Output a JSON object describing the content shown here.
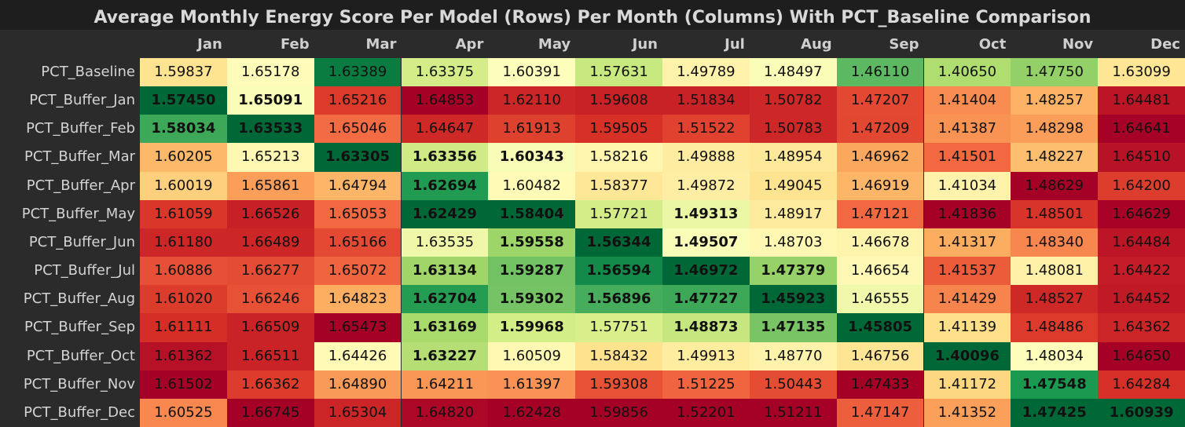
{
  "chart_data": {
    "type": "heatmap",
    "title": "Average Monthly Energy Score Per Model (Rows) Per Month (Columns) With PCT_Baseline Comparison",
    "columns": [
      "Jan",
      "Feb",
      "Mar",
      "Apr",
      "May",
      "Jun",
      "Jul",
      "Aug",
      "Sep",
      "Oct",
      "Nov",
      "Dec"
    ],
    "rows": [
      "PCT_Baseline",
      "PCT_Buffer_Jan",
      "PCT_Buffer_Feb",
      "PCT_Buffer_Mar",
      "PCT_Buffer_Apr",
      "PCT_Buffer_May",
      "PCT_Buffer_Jun",
      "PCT_Buffer_Jul",
      "PCT_Buffer_Aug",
      "PCT_Buffer_Sep",
      "PCT_Buffer_Oct",
      "PCT_Buffer_Nov",
      "PCT_Buffer_Dec"
    ],
    "values": [
      [
        1.59837,
        1.65178,
        1.63389,
        1.63375,
        1.60391,
        1.57631,
        1.49789,
        1.48497,
        1.4611,
        1.4065,
        1.4775,
        1.63099
      ],
      [
        1.5745,
        1.65091,
        1.65216,
        1.64853,
        1.6211,
        1.59608,
        1.51834,
        1.50782,
        1.47207,
        1.41404,
        1.48257,
        1.64481
      ],
      [
        1.58034,
        1.63533,
        1.65046,
        1.64647,
        1.61913,
        1.59505,
        1.51522,
        1.50783,
        1.47209,
        1.41387,
        1.48298,
        1.64641
      ],
      [
        1.60205,
        1.65213,
        1.63305,
        1.63356,
        1.60343,
        1.58216,
        1.49888,
        1.48954,
        1.46962,
        1.41501,
        1.48227,
        1.6451
      ],
      [
        1.60019,
        1.65861,
        1.64794,
        1.62694,
        1.60482,
        1.58377,
        1.49872,
        1.49045,
        1.46919,
        1.41034,
        1.48629,
        1.642
      ],
      [
        1.61059,
        1.66526,
        1.65053,
        1.62429,
        1.58404,
        1.57721,
        1.49313,
        1.48917,
        1.47121,
        1.41836,
        1.48501,
        1.64629
      ],
      [
        1.6118,
        1.66489,
        1.65166,
        1.63535,
        1.59558,
        1.56344,
        1.49507,
        1.48703,
        1.46678,
        1.41317,
        1.4834,
        1.64484
      ],
      [
        1.60886,
        1.66277,
        1.65072,
        1.63134,
        1.59287,
        1.56594,
        1.46972,
        1.47379,
        1.46654,
        1.41537,
        1.48081,
        1.64422
      ],
      [
        1.6102,
        1.66246,
        1.64823,
        1.62704,
        1.59302,
        1.56896,
        1.47727,
        1.45923,
        1.46555,
        1.41429,
        1.48527,
        1.64452
      ],
      [
        1.61111,
        1.66509,
        1.65473,
        1.63169,
        1.59968,
        1.57751,
        1.48873,
        1.47135,
        1.45805,
        1.41139,
        1.48486,
        1.64362
      ],
      [
        1.61362,
        1.66511,
        1.64426,
        1.63227,
        1.60509,
        1.58432,
        1.49913,
        1.4877,
        1.46756,
        1.40096,
        1.48034,
        1.6465
      ],
      [
        1.61502,
        1.66362,
        1.6489,
        1.64211,
        1.61397,
        1.59308,
        1.51225,
        1.50443,
        1.47433,
        1.41172,
        1.47548,
        1.64284
      ],
      [
        1.60525,
        1.66745,
        1.65304,
        1.6482,
        1.62428,
        1.59856,
        1.52201,
        1.51211,
        1.47147,
        1.41352,
        1.47425,
        1.60939
      ]
    ],
    "colormap": "RdYlGn reversed (green = lower, red = higher, per column)",
    "bold_rule": "value below PCT_Baseline in same column",
    "low_color": "#006837",
    "mid_color": "#ffffbf",
    "high_color": "#a50026"
  }
}
